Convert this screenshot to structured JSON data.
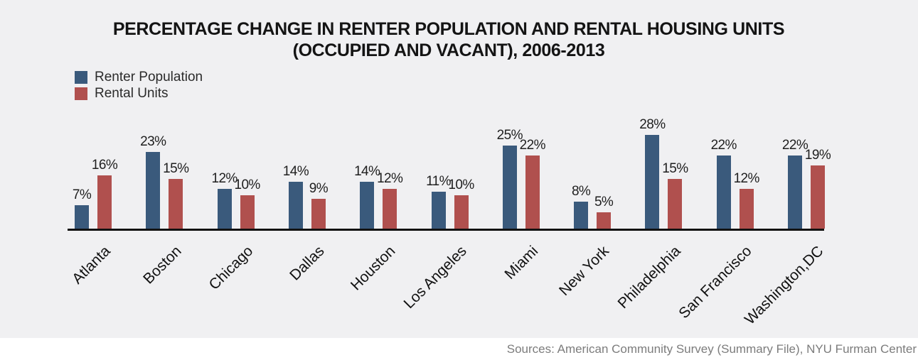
{
  "title": {
    "line1": "PERCENTAGE CHANGE IN RENTER POPULATION AND RENTAL HOUSING UNITS",
    "line2": "(OCCUPIED AND VACANT), 2006-2013"
  },
  "chart_data": {
    "type": "bar",
    "title": "PERCENTAGE CHANGE IN RENTER POPULATION AND RENTAL HOUSING UNITS (OCCUPIED AND VACANT), 2006-2013",
    "categories": [
      "Atlanta",
      "Boston",
      "Chicago",
      "Dallas",
      "Houston",
      "Los Angeles",
      "Miami",
      "New York",
      "Philadelphia",
      "San Francisco",
      "Washington,DC"
    ],
    "series": [
      {
        "name": "Renter Population",
        "color": "#3A5A7C",
        "values": [
          7,
          23,
          12,
          14,
          14,
          11,
          25,
          8,
          28,
          22,
          22
        ]
      },
      {
        "name": "Rental Units",
        "color": "#B0504E",
        "values": [
          16,
          15,
          10,
          9,
          12,
          10,
          22,
          5,
          15,
          12,
          19
        ]
      }
    ],
    "value_suffix": "%",
    "ylim": [
      0,
      30
    ],
    "grid": false,
    "legend_position": "top-left",
    "x_tick_rotation_deg": 45
  },
  "source": {
    "text": "Sources: American Community Survey (Summary File), NYU Furman Center"
  },
  "colors": {
    "background": "#F0F0F2",
    "axis": "#121212",
    "title_text": "#141414",
    "legend_text": "#2B2B2B",
    "value_text": "#1F1F1F",
    "city_text": "#111111",
    "source_text": "#7C7C7C",
    "source_bg": "#FFFFFF"
  }
}
